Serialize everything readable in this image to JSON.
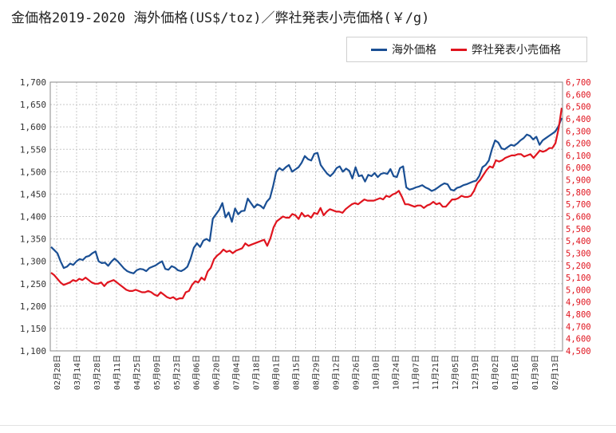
{
  "title": "金価格2019-2020 海外価格(US$/toz)／弊社発表小売価格(￥/g)",
  "legend": {
    "overseas": "海外価格",
    "retail": "弊社発表小売価格"
  },
  "colors": {
    "overseas": "#1a4f94",
    "retail": "#e0141e",
    "grid": "#c8c8c8",
    "right_axis_text": "#e0141e"
  },
  "chart_data": {
    "type": "line",
    "title": "金価格2019-2020 海外価格(US$/toz)／弊社発表小売価格(￥/g)",
    "grid": true,
    "legend_position": "top-right",
    "y_left": {
      "min": 1100,
      "max": 1700,
      "ticks": [
        "1,100",
        "1,150",
        "1,200",
        "1,250",
        "1,300",
        "1,350",
        "1,400",
        "1,450",
        "1,500",
        "1,550",
        "1,600",
        "1,650",
        "1,700"
      ]
    },
    "y_right": {
      "min": 4500,
      "max": 6700,
      "ticks": [
        "4,500",
        "4,600",
        "4,700",
        "4,800",
        "4,900",
        "5,000",
        "5,100",
        "5,200",
        "5,300",
        "5,400",
        "5,500",
        "5,600",
        "5,700",
        "5,800",
        "5,900",
        "6,000",
        "6,100",
        "6,200",
        "6,300",
        "6,400",
        "6,500",
        "6,600",
        "6,700"
      ]
    },
    "x_ticks": [
      "02月28日",
      "03月14日",
      "03月28日",
      "04月11日",
      "04月25日",
      "05月09日",
      "05月23日",
      "06月06日",
      "06月20日",
      "07月04日",
      "07月18日",
      "08月01日",
      "08月15日",
      "08月29日",
      "09月12日",
      "09月26日",
      "10月10日",
      "10月24日",
      "11月07日",
      "11月21日",
      "12月05日",
      "12月19日",
      "01月02日",
      "01月16日",
      "01月30日",
      "02月13日"
    ],
    "series": [
      {
        "name": "海外価格",
        "axis": "left",
        "values": [
          1332,
          1325,
          1318,
          1300,
          1285,
          1288,
          1295,
          1292,
          1300,
          1305,
          1303,
          1310,
          1312,
          1318,
          1322,
          1300,
          1296,
          1297,
          1290,
          1299,
          1306,
          1300,
          1292,
          1284,
          1278,
          1275,
          1273,
          1280,
          1283,
          1282,
          1278,
          1285,
          1288,
          1291,
          1296,
          1300,
          1283,
          1281,
          1289,
          1286,
          1280,
          1278,
          1282,
          1288,
          1306,
          1330,
          1340,
          1332,
          1346,
          1350,
          1345,
          1395,
          1405,
          1415,
          1430,
          1398,
          1409,
          1388,
          1418,
          1405,
          1412,
          1413,
          1440,
          1430,
          1420,
          1427,
          1424,
          1418,
          1433,
          1441,
          1468,
          1500,
          1508,
          1503,
          1510,
          1515,
          1500,
          1505,
          1510,
          1520,
          1535,
          1528,
          1525,
          1540,
          1542,
          1515,
          1505,
          1496,
          1490,
          1497,
          1508,
          1512,
          1500,
          1507,
          1502,
          1485,
          1510,
          1490,
          1492,
          1478,
          1493,
          1490,
          1497,
          1488,
          1495,
          1497,
          1495,
          1506,
          1490,
          1488,
          1508,
          1512,
          1465,
          1460,
          1462,
          1465,
          1467,
          1470,
          1465,
          1462,
          1457,
          1460,
          1465,
          1470,
          1474,
          1472,
          1460,
          1458,
          1464,
          1466,
          1470,
          1472,
          1475,
          1478,
          1480,
          1490,
          1510,
          1515,
          1525,
          1550,
          1570,
          1565,
          1552,
          1550,
          1555,
          1560,
          1558,
          1563,
          1570,
          1575,
          1583,
          1580,
          1572,
          1578,
          1560,
          1570,
          1575,
          1580,
          1585,
          1590,
          1602,
          1620
        ]
      },
      {
        "name": "弊社発表小売価格",
        "axis": "right",
        "values": [
          5140,
          5120,
          5090,
          5060,
          5040,
          5050,
          5060,
          5080,
          5070,
          5090,
          5080,
          5100,
          5080,
          5060,
          5050,
          5050,
          5060,
          5030,
          5060,
          5070,
          5080,
          5060,
          5040,
          5020,
          5000,
          4990,
          4990,
          5000,
          4990,
          4980,
          4980,
          4990,
          4980,
          4960,
          4950,
          4980,
          4960,
          4940,
          4930,
          4940,
          4920,
          4930,
          4930,
          4980,
          4990,
          5040,
          5070,
          5060,
          5100,
          5080,
          5150,
          5180,
          5250,
          5280,
          5300,
          5330,
          5310,
          5320,
          5300,
          5320,
          5330,
          5340,
          5380,
          5360,
          5370,
          5380,
          5390,
          5400,
          5410,
          5360,
          5420,
          5510,
          5560,
          5580,
          5600,
          5590,
          5590,
          5620,
          5610,
          5580,
          5630,
          5600,
          5610,
          5590,
          5630,
          5620,
          5670,
          5610,
          5640,
          5660,
          5650,
          5640,
          5640,
          5630,
          5660,
          5680,
          5700,
          5710,
          5700,
          5720,
          5740,
          5730,
          5730,
          5730,
          5740,
          5750,
          5740,
          5770,
          5760,
          5780,
          5790,
          5810,
          5760,
          5700,
          5700,
          5690,
          5680,
          5690,
          5690,
          5670,
          5690,
          5700,
          5720,
          5700,
          5710,
          5680,
          5680,
          5710,
          5740,
          5740,
          5750,
          5770,
          5760,
          5760,
          5770,
          5810,
          5870,
          5900,
          5940,
          5980,
          6010,
          6000,
          6060,
          6050,
          6060,
          6080,
          6090,
          6100,
          6100,
          6110,
          6110,
          6090,
          6100,
          6110,
          6080,
          6110,
          6140,
          6130,
          6140,
          6160,
          6160,
          6200,
          6320,
          6490
        ]
      }
    ]
  }
}
